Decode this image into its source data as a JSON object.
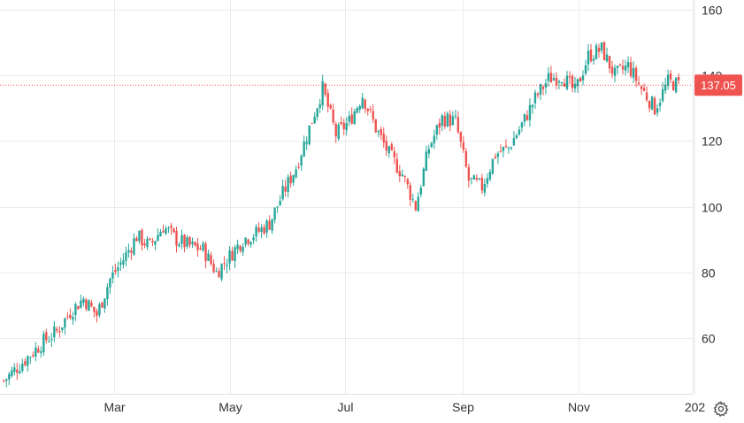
{
  "chart_data": {
    "type": "candlestick",
    "y_axis": {
      "position": "right",
      "ticks": [
        60,
        80,
        100,
        120,
        140,
        160
      ],
      "range": [
        43,
        163
      ]
    },
    "x_axis": {
      "ticks": [
        {
          "label": "Mar",
          "date": "2020-03-01"
        },
        {
          "label": "May",
          "date": "2020-05-01"
        },
        {
          "label": "Jul",
          "date": "2020-07-01"
        },
        {
          "label": "Sep",
          "date": "2020-09-01"
        },
        {
          "label": "Nov",
          "date": "2020-11-01"
        },
        {
          "label": "202",
          "date": "2021-01-01"
        }
      ],
      "range": [
        "2020-01-01",
        "2020-12-31"
      ]
    },
    "grid": true,
    "colors": {
      "up": "#26a69a",
      "down": "#ef5350",
      "price_line": "#ef5350",
      "grid": "#ebebeb"
    },
    "last_price": {
      "value": 137.05,
      "label": "137.05"
    },
    "weekly_closes": [
      {
        "date": "2020-01-03",
        "close": 47
      },
      {
        "date": "2020-01-10",
        "close": 51
      },
      {
        "date": "2020-01-17",
        "close": 55
      },
      {
        "date": "2020-01-24",
        "close": 59
      },
      {
        "date": "2020-01-31",
        "close": 62
      },
      {
        "date": "2020-02-07",
        "close": 68
      },
      {
        "date": "2020-02-14",
        "close": 72
      },
      {
        "date": "2020-02-21",
        "close": 67
      },
      {
        "date": "2020-02-28",
        "close": 78
      },
      {
        "date": "2020-03-06",
        "close": 84
      },
      {
        "date": "2020-03-13",
        "close": 91
      },
      {
        "date": "2020-03-20",
        "close": 88
      },
      {
        "date": "2020-03-27",
        "close": 94
      },
      {
        "date": "2020-04-03",
        "close": 90
      },
      {
        "date": "2020-04-10",
        "close": 88
      },
      {
        "date": "2020-04-17",
        "close": 87
      },
      {
        "date": "2020-04-24",
        "close": 80
      },
      {
        "date": "2020-05-01",
        "close": 85
      },
      {
        "date": "2020-05-08",
        "close": 90
      },
      {
        "date": "2020-05-15",
        "close": 92
      },
      {
        "date": "2020-05-22",
        "close": 95
      },
      {
        "date": "2020-05-29",
        "close": 104
      },
      {
        "date": "2020-06-05",
        "close": 112
      },
      {
        "date": "2020-06-12",
        "close": 124
      },
      {
        "date": "2020-06-19",
        "close": 136
      },
      {
        "date": "2020-06-26",
        "close": 122
      },
      {
        "date": "2020-07-03",
        "close": 126
      },
      {
        "date": "2020-07-10",
        "close": 134
      },
      {
        "date": "2020-07-17",
        "close": 124
      },
      {
        "date": "2020-07-24",
        "close": 116
      },
      {
        "date": "2020-07-31",
        "close": 110
      },
      {
        "date": "2020-08-07",
        "close": 100
      },
      {
        "date": "2020-08-14",
        "close": 118
      },
      {
        "date": "2020-08-21",
        "close": 127
      },
      {
        "date": "2020-08-28",
        "close": 126
      },
      {
        "date": "2020-09-04",
        "close": 108
      },
      {
        "date": "2020-09-11",
        "close": 106
      },
      {
        "date": "2020-09-18",
        "close": 116
      },
      {
        "date": "2020-09-25",
        "close": 118
      },
      {
        "date": "2020-10-02",
        "close": 125
      },
      {
        "date": "2020-10-09",
        "close": 133
      },
      {
        "date": "2020-10-16",
        "close": 139
      },
      {
        "date": "2020-10-23",
        "close": 140
      },
      {
        "date": "2020-10-30",
        "close": 135
      },
      {
        "date": "2020-11-06",
        "close": 146
      },
      {
        "date": "2020-11-13",
        "close": 148
      },
      {
        "date": "2020-11-20",
        "close": 140
      },
      {
        "date": "2020-11-27",
        "close": 143
      },
      {
        "date": "2020-12-04",
        "close": 136
      },
      {
        "date": "2020-12-11",
        "close": 130
      },
      {
        "date": "2020-12-18",
        "close": 138
      },
      {
        "date": "2020-12-25",
        "close": 137
      }
    ]
  },
  "toolbar": {
    "settings_icon": "gear-icon"
  }
}
